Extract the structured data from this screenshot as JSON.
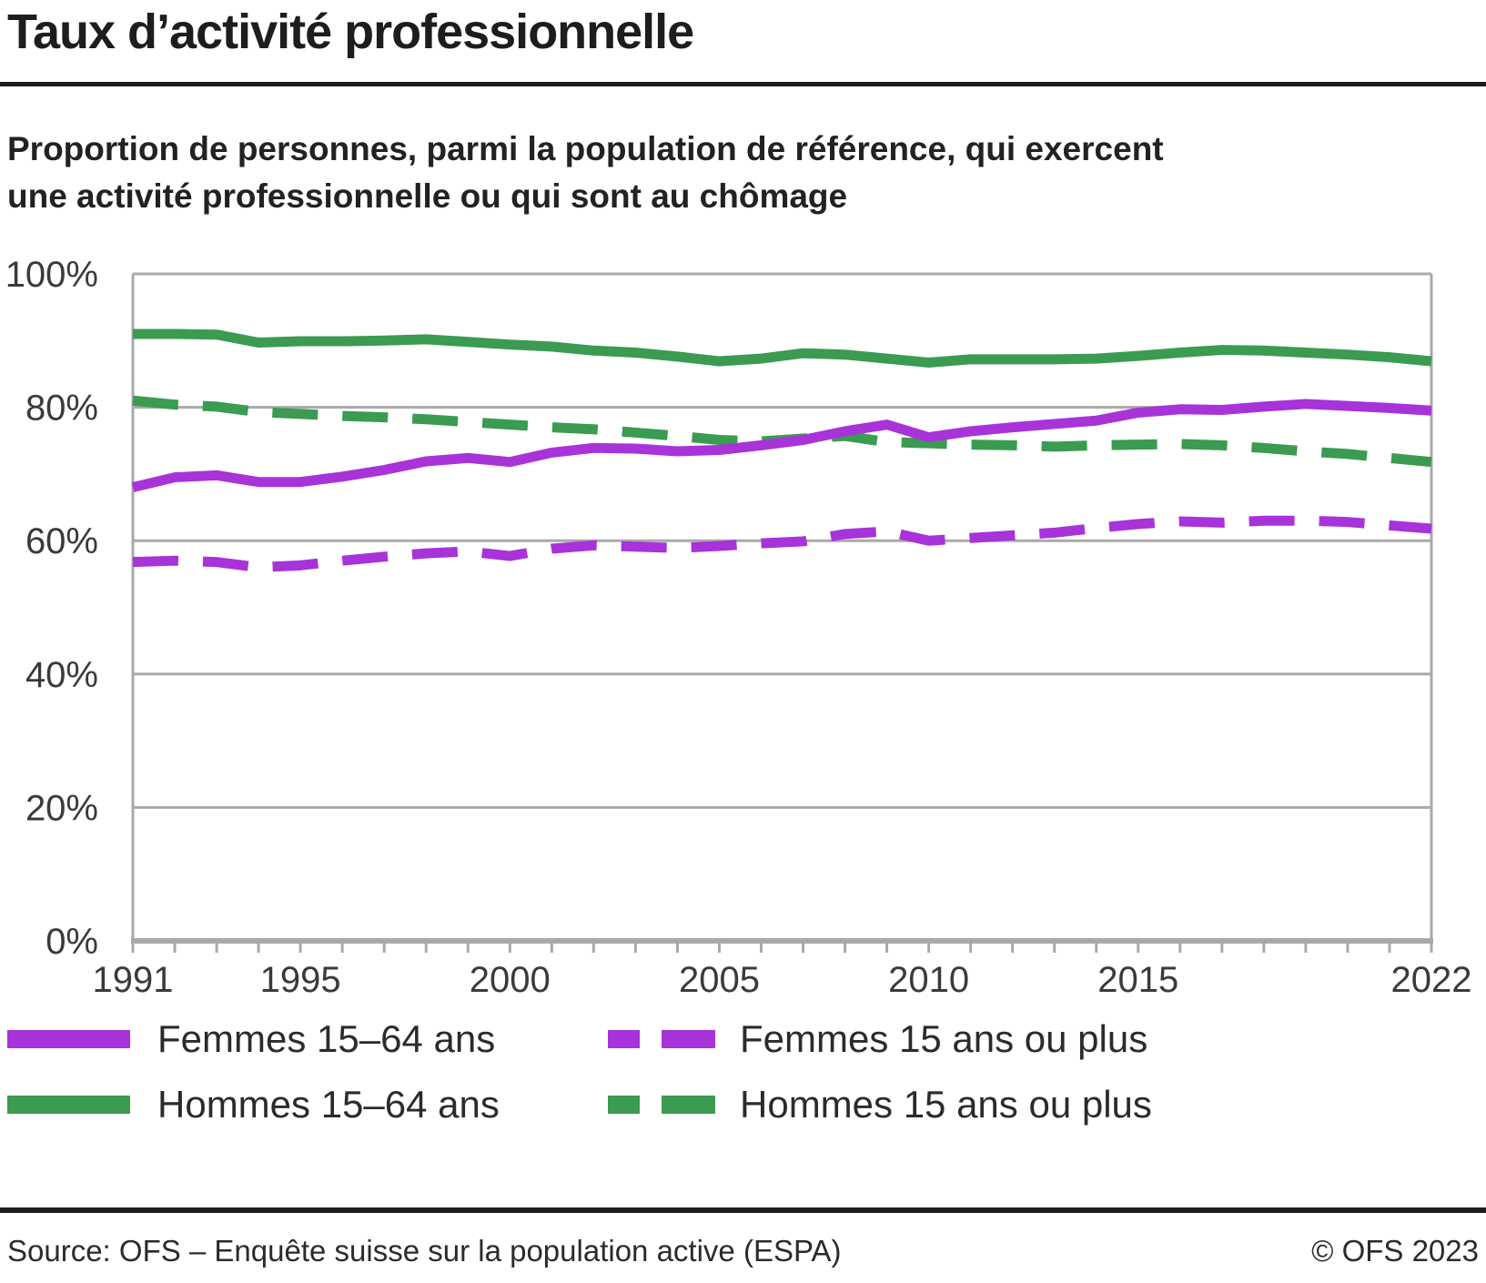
{
  "header": {
    "title": "Taux d’activité professionnelle",
    "subtitle_line1": "Proportion de personnes, parmi la population de référence, qui exercent",
    "subtitle_line2": "une activité professionnelle ou qui sont au chômage"
  },
  "footer": {
    "source": "Source: OFS – Enquête suisse sur la population active (ESPA)",
    "copyright": "© OFS 2023"
  },
  "chart_data": {
    "type": "line",
    "title": "Taux d’activité professionnelle",
    "xlabel": "",
    "ylabel": "",
    "xlim": [
      1991,
      2022
    ],
    "ylim": [
      0,
      100
    ],
    "yticks": [
      0,
      20,
      40,
      60,
      80,
      100
    ],
    "ytick_suffix": "%",
    "xticks": [
      1991,
      1995,
      2000,
      2005,
      2010,
      2015,
      2022
    ],
    "grid": "horizontal",
    "grid_color": "#a9a9a9",
    "legend_position": "bottom",
    "x": [
      1991,
      1992,
      1993,
      1994,
      1995,
      1996,
      1997,
      1998,
      1999,
      2000,
      2001,
      2002,
      2003,
      2004,
      2005,
      2006,
      2007,
      2008,
      2009,
      2010,
      2011,
      2012,
      2013,
      2014,
      2015,
      2016,
      2017,
      2018,
      2019,
      2020,
      2021,
      2022
    ],
    "series": [
      {
        "name": "Femmes 15–64 ans",
        "style": "solid",
        "color": "#a733d9",
        "values": [
          68.0,
          69.5,
          69.8,
          68.8,
          68.8,
          69.6,
          70.6,
          71.9,
          72.4,
          71.8,
          73.2,
          73.9,
          73.8,
          73.4,
          73.6,
          74.3,
          75.1,
          76.4,
          77.4,
          75.5,
          76.4,
          77.0,
          77.5,
          78.0,
          79.2,
          79.7,
          79.6,
          80.1,
          80.5,
          80.2,
          79.9,
          79.5
        ]
      },
      {
        "name": "Femmes 15 ans ou plus",
        "style": "dashed",
        "color": "#a733d9",
        "values": [
          56.8,
          57.0,
          56.8,
          56.0,
          56.3,
          57.0,
          57.6,
          58.1,
          58.4,
          57.7,
          58.8,
          59.3,
          59.1,
          58.9,
          59.2,
          59.6,
          59.9,
          61.0,
          61.4,
          60.0,
          60.4,
          60.8,
          61.2,
          61.9,
          62.5,
          62.9,
          62.7,
          63.0,
          63.0,
          62.8,
          62.3,
          61.8
        ]
      },
      {
        "name": "Hommes 15–64 ans",
        "style": "solid",
        "color": "#3a9b51",
        "values": [
          91.0,
          91.0,
          90.9,
          89.7,
          89.9,
          89.9,
          90.0,
          90.2,
          89.8,
          89.4,
          89.1,
          88.5,
          88.2,
          87.6,
          86.9,
          87.3,
          88.1,
          87.9,
          87.3,
          86.7,
          87.2,
          87.2,
          87.2,
          87.3,
          87.7,
          88.2,
          88.6,
          88.5,
          88.2,
          87.9,
          87.5,
          86.9
        ]
      },
      {
        "name": "Hommes 15 ans ou plus",
        "style": "dashed",
        "color": "#3a9b51",
        "values": [
          81.0,
          80.4,
          80.1,
          79.3,
          79.0,
          78.7,
          78.5,
          78.2,
          77.8,
          77.4,
          77.0,
          76.7,
          76.2,
          75.7,
          75.1,
          74.9,
          75.3,
          75.7,
          74.8,
          74.6,
          74.4,
          74.3,
          74.1,
          74.3,
          74.4,
          74.5,
          74.3,
          73.9,
          73.4,
          73.0,
          72.4,
          71.8
        ]
      }
    ]
  }
}
